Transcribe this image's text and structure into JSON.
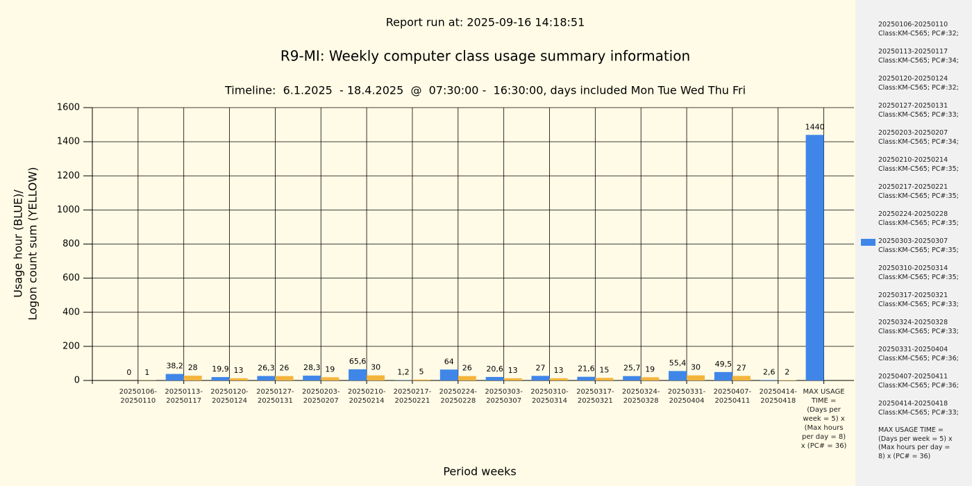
{
  "chart_data": {
    "type": "bar",
    "report_run": "Report run at: 2025-09-16 14:18:51",
    "title": "R9-MI: Weekly computer class usage summary information",
    "subtitle": "Timeline:  6.1.2025  - 18.4.2025  @  07:30:00 -  16:30:00, days included Mon Tue Wed Thu Fri",
    "ylabel": [
      "Usage hour (BLUE)/",
      "Logon count sum (YELLOW)"
    ],
    "xlabel": "Period weeks",
    "categories": [
      "20250106-20250110",
      "20250113-20250117",
      "20250120-20250124",
      "20250127-20250131",
      "20250203-20250207",
      "20250210-20250214",
      "20250217-20250221",
      "20250224-20250228",
      "20250303-20250307",
      "20250310-20250314",
      "20250317-20250321",
      "20250324-20250328",
      "20250331-20250404",
      "20250407-20250411",
      "20250414-20250418",
      "MAX USAGE TIME = (Days per week = 5) x (Max hours per day = 8) x (PC# = 36)"
    ],
    "series": [
      {
        "color": "#3f86e8",
        "values": [
          0,
          38.2,
          19.9,
          26.3,
          28.3,
          65.6,
          1.2,
          64,
          20.6,
          27,
          21.6,
          25.7,
          55.4,
          49.5,
          2.6,
          1440
        ],
        "value_labels": [
          "0",
          "38,2",
          "19,9",
          "26,3",
          "28,3",
          "65,6",
          "1,2",
          "64",
          "20,6",
          "27",
          "21,6",
          "25,7",
          "55,4",
          "49,5",
          "2,6",
          "1440"
        ]
      },
      {
        "color": "#f4b43c",
        "values": [
          1,
          28,
          13,
          26,
          19,
          30,
          5,
          26,
          13,
          13,
          15,
          19,
          30,
          27,
          2,
          null
        ]
      }
    ],
    "ylim": [
      0,
      1600
    ],
    "yticks": [
      0,
      200,
      400,
      600,
      800,
      1000,
      1200,
      1400,
      1600
    ],
    "grid": true,
    "legend": [
      {
        "period": "20250106-20250110",
        "info": "Class:KM-C565; PC#:32;"
      },
      {
        "period": "20250113-20250117",
        "info": "Class:KM-C565; PC#:34;"
      },
      {
        "period": "20250120-20250124",
        "info": "Class:KM-C565; PC#:32;"
      },
      {
        "period": "20250127-20250131",
        "info": "Class:KM-C565; PC#:33;"
      },
      {
        "period": "20250203-20250207",
        "info": "Class:KM-C565; PC#:34;"
      },
      {
        "period": "20250210-20250214",
        "info": "Class:KM-C565; PC#:35;"
      },
      {
        "period": "20250217-20250221",
        "info": "Class:KM-C565; PC#:35;"
      },
      {
        "period": "20250224-20250228",
        "info": "Class:KM-C565; PC#:35;"
      },
      {
        "period": "20250303-20250307",
        "info": "Class:KM-C565; PC#:35;"
      },
      {
        "period": "20250310-20250314",
        "info": "Class:KM-C565; PC#:35;"
      },
      {
        "period": "20250317-20250321",
        "info": "Class:KM-C565; PC#:33;"
      },
      {
        "period": "20250324-20250328",
        "info": "Class:KM-C565; PC#:33;"
      },
      {
        "period": "20250331-20250404",
        "info": "Class:KM-C565; PC#:36;"
      },
      {
        "period": "20250407-20250411",
        "info": "Class:KM-C565; PC#:36;"
      },
      {
        "period": "20250414-20250418",
        "info": "Class:KM-C565; PC#:33;"
      },
      {
        "period": "MAX USAGE TIME = (Days per week = 5) x (Max hours per day = 8) x (PC# = 36)"
      }
    ]
  }
}
